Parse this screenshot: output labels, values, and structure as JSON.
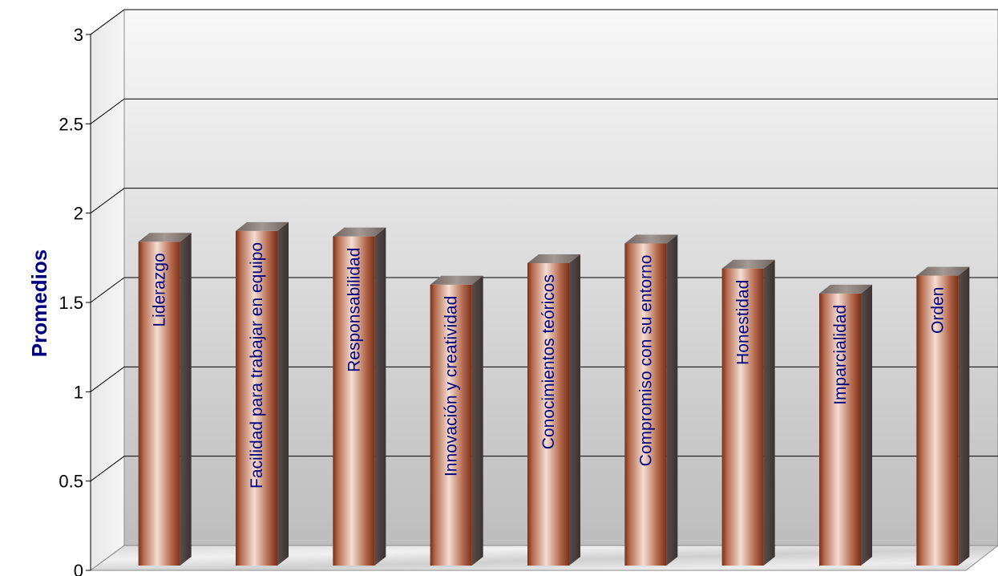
{
  "chart_data": {
    "type": "bar",
    "categories": [
      "Liderazgo",
      "Facilidad para trabajar en equipo",
      "Responsabilidad",
      "Innovación y creatividad",
      "Conocimientos teóricos",
      "Compromiso con su entorno",
      "Honestidad",
      "Imparcialidad",
      "Orden"
    ],
    "values": [
      1.84,
      1.9,
      1.87,
      1.6,
      1.72,
      1.83,
      1.69,
      1.55,
      1.65
    ],
    "ylabel": "Promedios",
    "xlabel": "",
    "title": "",
    "ylim": [
      0,
      3
    ],
    "yticks": [
      0,
      0.5,
      1,
      1.5,
      2,
      2.5,
      3
    ],
    "ytick_labels": [
      "0",
      "0.5",
      "1",
      "1.5",
      "2",
      "2.5",
      "3"
    ],
    "grid": true,
    "legend": "none",
    "style": "3d-cylinder-bars",
    "colors": {
      "bar_light": "#f4ddd2",
      "bar_mid": "#b56a4e",
      "bar_dark": "#7a2f17",
      "bar_side": "#4a4040",
      "bar_top": "#8a7e7a",
      "label": "#000080",
      "wall_top": "#f8f8f8",
      "wall_bottom": "#bdbdbd",
      "floor": "#dcdcdc",
      "grid": "#000000"
    }
  }
}
